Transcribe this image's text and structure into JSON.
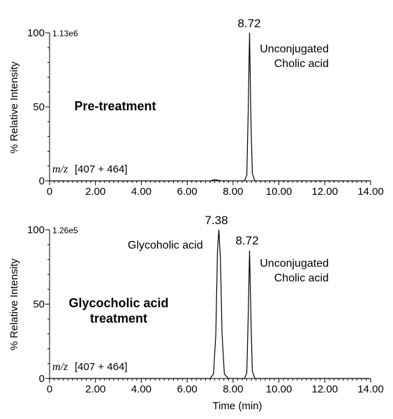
{
  "chart_data": [
    {
      "type": "line",
      "xlabel": "",
      "ylabel": "% Relative Intensity",
      "xlim": [
        0,
        14
      ],
      "ylim": [
        0,
        100
      ],
      "x_ticks": [
        "0",
        "2.00",
        "4.00",
        "6.00",
        "8.00",
        "10.00",
        "12.00",
        "14.00"
      ],
      "y_ticks": [
        "0",
        "50",
        "100"
      ],
      "scale": "1.13e6",
      "mz_label": "m/z",
      "mz_range": "[407 + 464]",
      "condition_lines": [
        "Pre-treatment"
      ],
      "peaks": [
        {
          "time": "8.72",
          "height": 100,
          "width": 0.07,
          "label_lines": [
            "Unconjugated",
            "Cholic acid"
          ]
        }
      ],
      "series": [
        {
          "x": [
            0,
            7.0,
            7.2,
            7.35,
            7.5,
            8.5,
            8.6,
            8.66,
            8.72,
            8.78,
            8.84,
            8.95,
            14
          ],
          "y": [
            0,
            0,
            0.8,
            0.4,
            0,
            0,
            4,
            45,
            100,
            40,
            5,
            0,
            0
          ]
        }
      ]
    },
    {
      "type": "line",
      "xlabel": "Time (min)",
      "ylabel": "% Relative Intensity",
      "xlim": [
        0,
        14
      ],
      "ylim": [
        0,
        100
      ],
      "x_ticks": [
        "0",
        "2.00",
        "4.00",
        "6.00",
        "8.00",
        "10.00",
        "12.00",
        "14.00"
      ],
      "y_ticks": [
        "0",
        "50",
        "100"
      ],
      "scale": "1.26e5",
      "mz_label": "m/z",
      "mz_range": "[407 + 464]",
      "condition_lines": [
        "Glycocholic acid",
        "treatment"
      ],
      "peaks": [
        {
          "time": "7.38",
          "height": 100,
          "width": 0.12,
          "label_lines": [
            "Glycoholic acid"
          ]
        },
        {
          "time": "8.72",
          "height": 86,
          "width": 0.07,
          "label_lines": [
            "Unconjugated",
            "Cholic acid"
          ]
        }
      ],
      "series": [
        {
          "x": [
            0,
            7.0,
            7.15,
            7.25,
            7.32,
            7.38,
            7.45,
            7.52,
            7.62,
            7.8,
            8.5,
            8.6,
            8.66,
            8.72,
            8.78,
            8.84,
            8.95,
            14
          ],
          "y": [
            0,
            0,
            3,
            30,
            85,
            100,
            80,
            30,
            3,
            0,
            0,
            4,
            40,
            86,
            40,
            5,
            0,
            0
          ]
        }
      ]
    }
  ]
}
